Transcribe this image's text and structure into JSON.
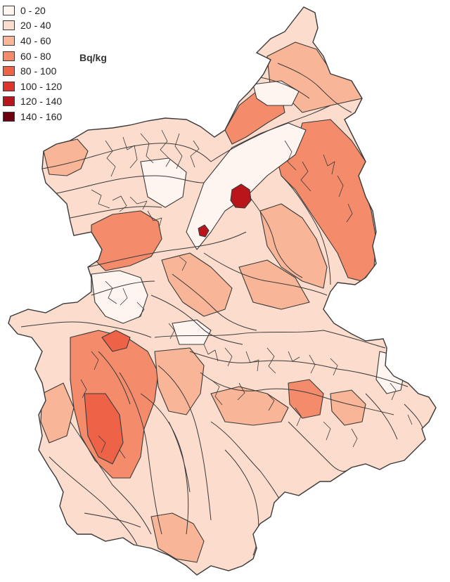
{
  "legend": {
    "classes": [
      {
        "label": "0 - 20",
        "color": "#fff5f0"
      },
      {
        "label": "20 - 40",
        "color": "#fcdccc"
      },
      {
        "label": "40 - 60",
        "color": "#f9b597"
      },
      {
        "label": "60 - 80",
        "color": "#f48c6c"
      },
      {
        "label": "80 - 100",
        "color": "#ee6247"
      },
      {
        "label": "100 - 120",
        "color": "#e0332b"
      },
      {
        "label": "120 - 140",
        "color": "#b9151b"
      },
      {
        "label": "140 - 160",
        "color": "#6f000f"
      }
    ]
  },
  "unit": "Bq/kg",
  "outline_color": "#3a3a3a"
}
